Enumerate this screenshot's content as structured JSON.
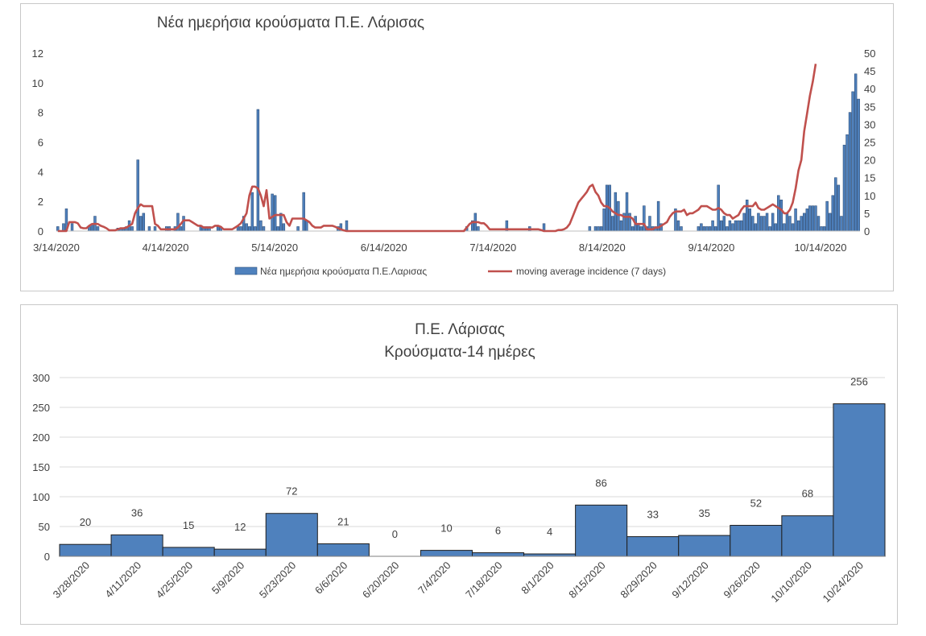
{
  "chart_data": [
    {
      "type": "bar+line",
      "title": "Νέα ημερήσια κρούσματα Π.Ε. Λάρισας",
      "x_tick_labels": [
        "3/14/2020",
        "4/14/2020",
        "5/14/2020",
        "6/14/2020",
        "7/14/2020",
        "8/14/2020",
        "9/14/2020",
        "10/14/2020"
      ],
      "y_left_ticks": [
        "0",
        "2",
        "4",
        "6",
        "8",
        "10",
        "12"
      ],
      "y_right_ticks": [
        "0",
        "5",
        "10",
        "15",
        "20",
        "25",
        "30",
        "35",
        "40",
        "45",
        "50"
      ],
      "ylim_left": [
        0,
        12
      ],
      "ylim_right": [
        0,
        50
      ],
      "legend_position": "bottom",
      "series": [
        {
          "name": "Νέα ημερήσια κρούσματα Π.Ε.Λαρισας",
          "kind": "bar",
          "axis": "left",
          "color": "#4f81bd",
          "values": [
            0.3,
            0,
            0.5,
            1.5,
            0,
            0.5,
            0,
            0,
            0,
            0,
            0,
            0.3,
            0.5,
            1,
            0.3,
            0,
            0,
            0,
            0,
            0,
            0,
            0.2,
            0.2,
            0.2,
            0.3,
            0.7,
            0.3,
            0,
            4.8,
            1,
            1.2,
            0,
            0.3,
            0,
            0.3,
            0,
            0,
            0,
            0.3,
            0.3,
            0,
            0.3,
            1.2,
            0.3,
            1,
            0,
            0,
            0,
            0,
            0,
            0.3,
            0.3,
            0.3,
            0.3,
            0,
            0,
            0.3,
            0.3,
            0,
            0,
            0,
            0,
            0,
            0.3,
            0.3,
            1,
            0.5,
            0.3,
            2.6,
            0.3,
            8.2,
            0.7,
            0.3,
            0,
            0,
            2.5,
            2.4,
            0.3,
            1.2,
            0.5,
            0,
            0,
            0,
            0,
            0.3,
            0,
            2.6,
            0.7,
            0,
            0,
            0,
            0,
            0,
            0,
            0,
            0,
            0,
            0,
            0.3,
            0.5,
            0,
            0.7,
            0,
            0,
            0,
            0,
            0,
            0,
            0,
            0,
            0,
            0,
            0,
            0,
            0,
            0,
            0,
            0,
            0,
            0,
            0,
            0,
            0,
            0,
            0,
            0,
            0,
            0,
            0,
            0,
            0,
            0,
            0,
            0,
            0,
            0,
            0,
            0,
            0,
            0,
            0,
            0,
            0,
            0.3,
            0,
            0.7,
            1.2,
            0.3,
            0,
            0,
            0,
            0,
            0,
            0,
            0,
            0,
            0,
            0.7,
            0,
            0,
            0,
            0,
            0,
            0,
            0,
            0.3,
            0,
            0,
            0,
            0,
            0.5,
            0,
            0,
            0,
            0,
            0,
            0,
            0,
            0,
            0,
            0,
            0,
            0,
            0,
            0,
            0,
            0.3,
            0,
            0.3,
            0.3,
            0.3,
            1.5,
            3.1,
            3.1,
            1,
            2.6,
            2,
            0.7,
            1.2,
            2.6,
            1.2,
            0.3,
            1,
            0.5,
            0.3,
            1.7,
            0.3,
            1,
            0.3,
            0.3,
            2,
            0.5,
            0,
            0,
            0,
            0,
            1.5,
            0.7,
            0.3,
            0,
            0,
            0,
            0,
            0,
            0.3,
            0.5,
            0.3,
            0.3,
            0.3,
            0.7,
            0.3,
            3.1,
            0.7,
            1,
            0.3,
            0.7,
            0.5,
            0.7,
            0.7,
            0.7,
            1.2,
            2.1,
            1.5,
            1,
            0.5,
            1.2,
            1,
            1,
            1.2,
            0.3,
            1.2,
            0.5,
            2.4,
            2.1,
            0.5,
            1.2,
            1,
            0.5,
            1.5,
            0.7,
            1,
            1.2,
            1.5,
            1.7,
            1.7,
            1.7,
            1,
            0.3,
            0.3,
            2,
            1.2,
            2.4,
            3.6,
            3.1,
            1,
            5.8,
            6.5,
            8,
            9.4,
            10.6,
            8.9
          ]
        },
        {
          "name": "moving average incidence (7 days)",
          "kind": "line",
          "axis": "right",
          "color": "#c0504d",
          "values": [
            0,
            0,
            0,
            0,
            2.5,
            2.5,
            2.5,
            2.2,
            1,
            0.8,
            0.8,
            1.5,
            2,
            2,
            2,
            1.5,
            1.2,
            0.8,
            0.2,
            0.2,
            0.2,
            0.5,
            0.8,
            0.8,
            1,
            1.5,
            2,
            5,
            6.5,
            7.5,
            7,
            7,
            7,
            7,
            2,
            1.5,
            0.5,
            0.5,
            0.5,
            0.5,
            0.5,
            0.5,
            1,
            2,
            3,
            3,
            3,
            2.5,
            2,
            1.5,
            1.5,
            1,
            1,
            1,
            1,
            1.5,
            1.5,
            1.2,
            0.5,
            0.5,
            0.5,
            0.5,
            1,
            1.5,
            2.2,
            3.5,
            5,
            10,
            12.5,
            12.5,
            12,
            10,
            7,
            11.5,
            3.5,
            4,
            4.5,
            4.5,
            4.5,
            4.5,
            2.5,
            1.5,
            3.5,
            3.5,
            3.5,
            3.5,
            3.5,
            3,
            2.5,
            1.5,
            1,
            1,
            1,
            1.5,
            1.5,
            1.5,
            1.5,
            1.2,
            0.8,
            0.5,
            0.2,
            0,
            0,
            0,
            0,
            0,
            0,
            0,
            0,
            0,
            0,
            0,
            0,
            0,
            0,
            0,
            0,
            0,
            0,
            0,
            0,
            0,
            0,
            0,
            0,
            0,
            0,
            0,
            0,
            0,
            0,
            0,
            0,
            0,
            0,
            0,
            0,
            0,
            0,
            0,
            0,
            0,
            0,
            1,
            2,
            2.5,
            2.5,
            2.5,
            2.2,
            2.2,
            1.5,
            0.5,
            0.5,
            0.5,
            0.5,
            0.5,
            0.5,
            0.5,
            0.5,
            0.5,
            0.5,
            0.5,
            0.5,
            0.5,
            0.5,
            0.5,
            0.5,
            0.5,
            0.5,
            0.3,
            0,
            0,
            0,
            0,
            0,
            0.3,
            0.3,
            0.5,
            1,
            2,
            4,
            6,
            8,
            9,
            10,
            11,
            12.5,
            13,
            11,
            10,
            8,
            7,
            7,
            6.5,
            5.5,
            5,
            4.5,
            4.5,
            4,
            4,
            4,
            3.5,
            2,
            2,
            2,
            2,
            0.5,
            0.5,
            0.5,
            1,
            1,
            1.5,
            2,
            2.5,
            4,
            5,
            5.5,
            5.5,
            5.5,
            6,
            4.5,
            5,
            5,
            5.5,
            6,
            7,
            7,
            7,
            6.5,
            6,
            6,
            6.5,
            6,
            5,
            4.5,
            4.5,
            3.5,
            4,
            4.5,
            6,
            7,
            7,
            7,
            7,
            8,
            6.5,
            6,
            6,
            6.5,
            7,
            7.5,
            7,
            6.5,
            6,
            5,
            5,
            6,
            8,
            12,
            17,
            20,
            28,
            33,
            38,
            42,
            47
          ]
        }
      ]
    },
    {
      "type": "bar",
      "title": "Π.Ε. Λάρισας",
      "subtitle": "Κρούσματα-14 ημέρες",
      "categories": [
        "3/28/2020",
        "4/11/2020",
        "4/25/2020",
        "5/9/2020",
        "5/23/2020",
        "6/6/2020",
        "6/20/2020",
        "7/4/2020",
        "7/18/2020",
        "8/1/2020",
        "8/15/2020",
        "8/29/2020",
        "9/12/2020",
        "9/26/2020",
        "10/10/2020",
        "10/24/2020"
      ],
      "values": [
        20,
        36,
        15,
        12,
        72,
        21,
        0,
        10,
        6,
        4,
        86,
        33,
        35,
        52,
        68,
        256
      ],
      "y_ticks": [
        "0",
        "50",
        "100",
        "150",
        "200",
        "250",
        "300"
      ],
      "ylim": [
        0,
        300
      ],
      "grid": true,
      "color": "#4f81bd"
    }
  ]
}
